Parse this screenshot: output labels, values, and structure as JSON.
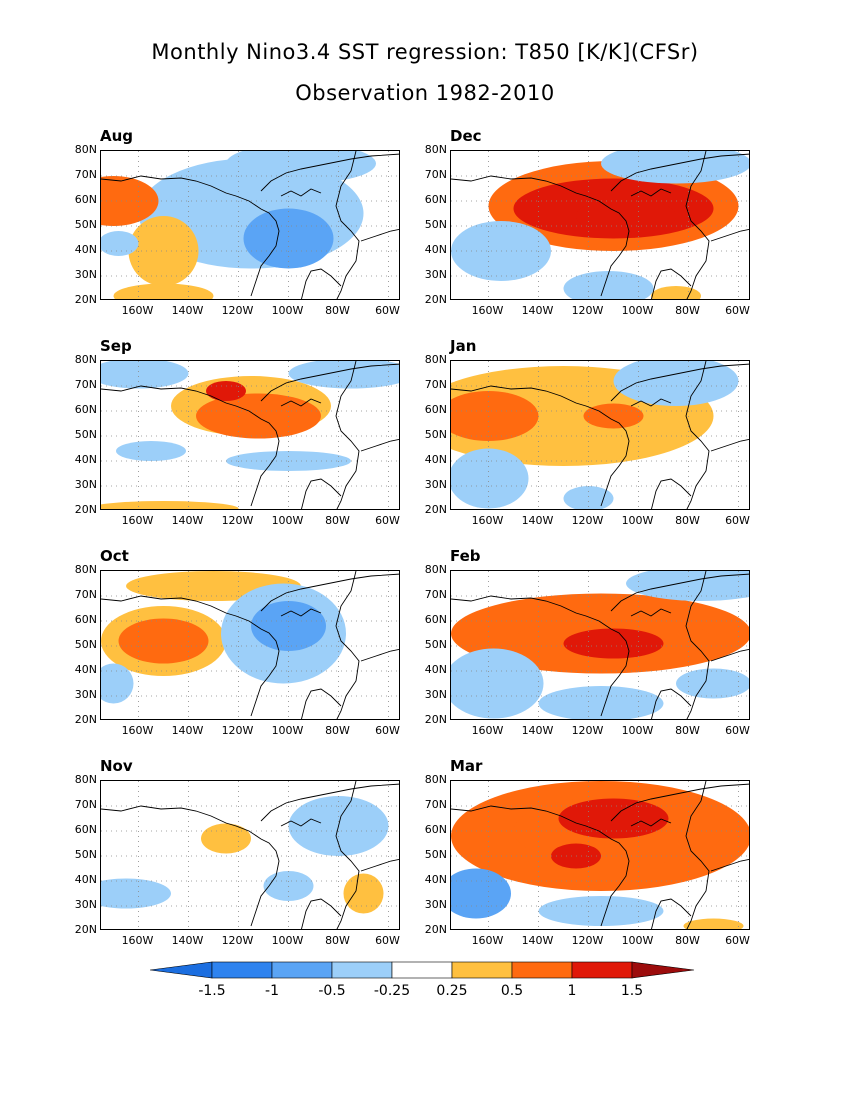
{
  "title_line1": "Monthly Nino3.4 SST regression: T850 [K/K](CFSr)",
  "title_line2": "Observation 1982-2010",
  "lat_labels": [
    "80N",
    "70N",
    "60N",
    "50N",
    "40N",
    "30N",
    "20N"
  ],
  "lon_labels": [
    "160W",
    "140W",
    "120W",
    "100W",
    "80W",
    "60W"
  ],
  "panels": [
    {
      "name": "Aug",
      "blobs": [
        {
          "lon": -115,
          "lat": 55,
          "rx": 45,
          "ry": 22,
          "v": -0.4
        },
        {
          "lon": -100,
          "lat": 45,
          "rx": 18,
          "ry": 12,
          "v": -0.6
        },
        {
          "lon": -95,
          "lat": 75,
          "rx": 30,
          "ry": 8,
          "v": -0.4
        },
        {
          "lon": -170,
          "lat": 60,
          "rx": 18,
          "ry": 10,
          "v": 0.5
        },
        {
          "lon": -150,
          "lat": 40,
          "rx": 14,
          "ry": 14,
          "v": 0.3
        },
        {
          "lon": -150,
          "lat": 22,
          "rx": 20,
          "ry": 5,
          "v": 0.4
        },
        {
          "lon": -168,
          "lat": 43,
          "rx": 8,
          "ry": 5,
          "v": -0.3
        }
      ]
    },
    {
      "name": "Dec",
      "blobs": [
        {
          "lon": -110,
          "lat": 58,
          "rx": 50,
          "ry": 18,
          "v": 0.6
        },
        {
          "lon": -110,
          "lat": 57,
          "rx": 40,
          "ry": 12,
          "v": 1.0
        },
        {
          "lon": -105,
          "lat": 54,
          "rx": 20,
          "ry": 7,
          "v": 1.3
        },
        {
          "lon": -155,
          "lat": 40,
          "rx": 20,
          "ry": 12,
          "v": -0.4
        },
        {
          "lon": -112,
          "lat": 25,
          "rx": 18,
          "ry": 7,
          "v": -0.4
        },
        {
          "lon": -85,
          "lat": 75,
          "rx": 30,
          "ry": 8,
          "v": -0.3
        },
        {
          "lon": -85,
          "lat": 22,
          "rx": 10,
          "ry": 4,
          "v": 0.4
        }
      ]
    },
    {
      "name": "Sep",
      "blobs": [
        {
          "lon": -115,
          "lat": 62,
          "rx": 32,
          "ry": 12,
          "v": 0.4
        },
        {
          "lon": -112,
          "lat": 58,
          "rx": 25,
          "ry": 9,
          "v": 0.8
        },
        {
          "lon": -125,
          "lat": 68,
          "rx": 8,
          "ry": 4,
          "v": 1.1
        },
        {
          "lon": -160,
          "lat": 75,
          "rx": 20,
          "ry": 6,
          "v": -0.3
        },
        {
          "lon": -75,
          "lat": 75,
          "rx": 25,
          "ry": 6,
          "v": -0.4
        },
        {
          "lon": -155,
          "lat": 44,
          "rx": 14,
          "ry": 4,
          "v": -0.3
        },
        {
          "lon": -100,
          "lat": 40,
          "rx": 25,
          "ry": 4,
          "v": -0.3
        },
        {
          "lon": -150,
          "lat": 21,
          "rx": 30,
          "ry": 3,
          "v": 0.3
        }
      ]
    },
    {
      "name": "Jan",
      "blobs": [
        {
          "lon": -130,
          "lat": 58,
          "rx": 60,
          "ry": 20,
          "v": 0.4
        },
        {
          "lon": -160,
          "lat": 58,
          "rx": 20,
          "ry": 10,
          "v": 0.6
        },
        {
          "lon": -110,
          "lat": 58,
          "rx": 12,
          "ry": 5,
          "v": 0.6
        },
        {
          "lon": -160,
          "lat": 33,
          "rx": 16,
          "ry": 12,
          "v": -0.4
        },
        {
          "lon": -85,
          "lat": 72,
          "rx": 25,
          "ry": 10,
          "v": -0.3
        },
        {
          "lon": -120,
          "lat": 25,
          "rx": 10,
          "ry": 5,
          "v": -0.3
        }
      ]
    },
    {
      "name": "Oct",
      "blobs": [
        {
          "lon": -150,
          "lat": 52,
          "rx": 25,
          "ry": 14,
          "v": 0.4
        },
        {
          "lon": -150,
          "lat": 52,
          "rx": 18,
          "ry": 9,
          "v": 0.7
        },
        {
          "lon": -130,
          "lat": 74,
          "rx": 35,
          "ry": 6,
          "v": 0.4
        },
        {
          "lon": -102,
          "lat": 55,
          "rx": 25,
          "ry": 20,
          "v": -0.4
        },
        {
          "lon": -100,
          "lat": 58,
          "rx": 15,
          "ry": 10,
          "v": -0.6
        },
        {
          "lon": -170,
          "lat": 35,
          "rx": 8,
          "ry": 8,
          "v": -0.3
        }
      ]
    },
    {
      "name": "Feb",
      "blobs": [
        {
          "lon": -115,
          "lat": 55,
          "rx": 60,
          "ry": 16,
          "v": 0.5
        },
        {
          "lon": -110,
          "lat": 52,
          "rx": 40,
          "ry": 10,
          "v": 0.8
        },
        {
          "lon": -110,
          "lat": 51,
          "rx": 20,
          "ry": 6,
          "v": 1.2
        },
        {
          "lon": -158,
          "lat": 35,
          "rx": 20,
          "ry": 14,
          "v": -0.4
        },
        {
          "lon": -115,
          "lat": 27,
          "rx": 25,
          "ry": 7,
          "v": -0.4
        },
        {
          "lon": -75,
          "lat": 75,
          "rx": 30,
          "ry": 7,
          "v": -0.4
        },
        {
          "lon": -70,
          "lat": 35,
          "rx": 15,
          "ry": 6,
          "v": -0.3
        }
      ]
    },
    {
      "name": "Nov",
      "blobs": [
        {
          "lon": -80,
          "lat": 62,
          "rx": 20,
          "ry": 12,
          "v": -0.3
        },
        {
          "lon": -165,
          "lat": 35,
          "rx": 18,
          "ry": 6,
          "v": -0.3
        },
        {
          "lon": -100,
          "lat": 38,
          "rx": 10,
          "ry": 6,
          "v": -0.3
        },
        {
          "lon": -125,
          "lat": 57,
          "rx": 10,
          "ry": 6,
          "v": 0.3
        },
        {
          "lon": -70,
          "lat": 35,
          "rx": 8,
          "ry": 8,
          "v": 0.4
        }
      ]
    },
    {
      "name": "Mar",
      "blobs": [
        {
          "lon": -115,
          "lat": 58,
          "rx": 60,
          "ry": 22,
          "v": 0.5
        },
        {
          "lon": -108,
          "lat": 60,
          "rx": 42,
          "ry": 14,
          "v": 0.8
        },
        {
          "lon": -110,
          "lat": 65,
          "rx": 22,
          "ry": 8,
          "v": 1.2
        },
        {
          "lon": -125,
          "lat": 50,
          "rx": 10,
          "ry": 5,
          "v": 1.1
        },
        {
          "lon": -165,
          "lat": 35,
          "rx": 14,
          "ry": 10,
          "v": -0.6
        },
        {
          "lon": -115,
          "lat": 28,
          "rx": 25,
          "ry": 6,
          "v": -0.4
        },
        {
          "lon": -70,
          "lat": 22,
          "rx": 12,
          "ry": 3,
          "v": 0.4
        }
      ]
    }
  ],
  "colorbar": {
    "labels": [
      "-1.5",
      "-1",
      "-0.5",
      "-0.25",
      "0.25",
      "0.5",
      "1",
      "1.5"
    ],
    "colors": [
      "#1b6ee0",
      "#2e83ef",
      "#5aa4f5",
      "#9ccff9",
      "#ffffff",
      "#ffc040",
      "#ff6a10",
      "#e01808",
      "#9c0c0c"
    ]
  }
}
